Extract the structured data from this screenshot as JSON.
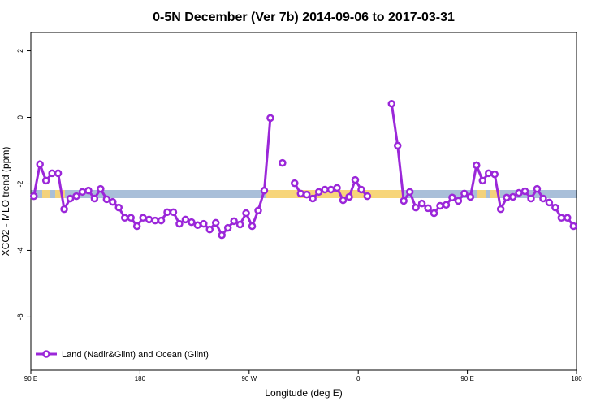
{
  "chart_data": {
    "type": "line",
    "title": "0-5N December (Ver 7b)   2014-09-06 to 2017-03-31",
    "x_label": "Longitude (deg E)",
    "y_label": "XCO2 - MLO trend (ppm)",
    "xlim": [
      90,
      540
    ],
    "ylim": [
      -7.6,
      2.55
    ],
    "xticks": [
      {
        "value": 90,
        "label": "90 E"
      },
      180,
      {
        "value": 270,
        "label": "90 W"
      },
      {
        "value": 360,
        "label": "0"
      },
      {
        "value": 450,
        "label": "90 E"
      },
      {
        "value": 540,
        "label": "180"
      }
    ],
    "yticks": [
      2,
      0,
      -2,
      -4,
      -6
    ],
    "legend": "bottom-left",
    "x": [
      92.5,
      97.5,
      102.5,
      107.5,
      112.5,
      117.5,
      122.5,
      127.5,
      132.5,
      137.5,
      142.5,
      147.5,
      152.5,
      157.5,
      162.5,
      167.5,
      172.5,
      177.5,
      182.5,
      187.5,
      192.5,
      197.5,
      202.5,
      207.5,
      212.5,
      217.5,
      222.5,
      227.5,
      232.5,
      237.5,
      242.5,
      247.5,
      252.5,
      257.5,
      262.5,
      267.5,
      272.5,
      277.5,
      282.5,
      287.5,
      292.5,
      297.5,
      302.5,
      307.5,
      312.5,
      317.5,
      322.5,
      327.5,
      332.5,
      337.5,
      342.5,
      347.5,
      352.5,
      357.5,
      362.5,
      367.5,
      372.5,
      377.5,
      382.5,
      387.5,
      392.5,
      397.5,
      402.5,
      407.5,
      412.5,
      417.5,
      422.5,
      427.5,
      432.5,
      437.5,
      442.5,
      447.5,
      452.5,
      457.5,
      462.5,
      467.5,
      472.5,
      477.5,
      482.5,
      487.5,
      492.5,
      497.5,
      502.5,
      507.5,
      512.5,
      517.5,
      522.5,
      527.5,
      532.5,
      537.5
    ],
    "series": [
      {
        "name": "Land (Nadir&Glint) and Ocean (Glint)",
        "color": "#9b27d9",
        "values": [
          -2.37,
          -1.41,
          -1.9,
          -1.68,
          -1.68,
          -2.76,
          -2.44,
          -2.37,
          -2.24,
          -2.2,
          -2.44,
          -2.15,
          -2.46,
          -2.54,
          -2.71,
          -3.02,
          -3.02,
          -3.27,
          -3.02,
          -3.07,
          -3.1,
          -3.1,
          -2.85,
          -2.85,
          -3.2,
          -3.07,
          -3.15,
          -3.24,
          -3.2,
          -3.37,
          -3.17,
          -3.54,
          -3.32,
          -3.12,
          -3.22,
          -2.88,
          -3.27,
          -2.8,
          -2.2,
          -0.02,
          null,
          -1.37,
          null,
          -1.98,
          -2.29,
          -2.32,
          -2.44,
          -2.24,
          -2.17,
          -2.17,
          -2.12,
          -2.49,
          -2.39,
          -1.88,
          -2.17,
          -2.37,
          null,
          null,
          null,
          0.41,
          -0.85,
          -2.51,
          -2.24,
          -2.71,
          -2.59,
          -2.73,
          -2.88,
          -2.66,
          -2.63,
          -2.41,
          -2.51,
          -2.29,
          -2.39,
          -1.44,
          -1.9,
          -1.68,
          -1.71,
          -2.76,
          -2.41,
          -2.39,
          -2.27,
          -2.22,
          -2.44,
          -2.15,
          -2.44,
          -2.56,
          -2.71,
          -3.02,
          -3.02,
          -3.27
        ]
      }
    ]
  }
}
